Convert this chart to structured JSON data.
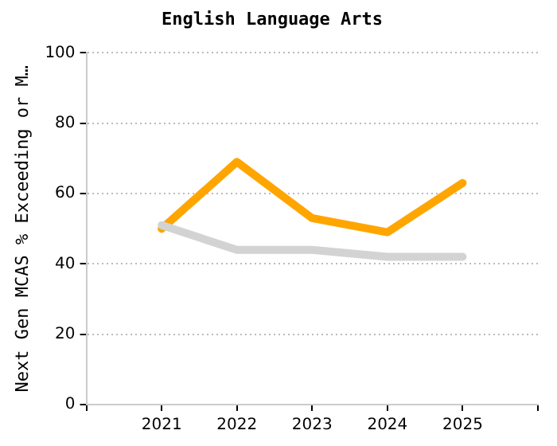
{
  "chart_data": {
    "type": "line",
    "title": "English Language Arts",
    "ylabel": "Next Gen MCAS % Exceeding or M…",
    "x": [
      2021,
      2022,
      2023,
      2024,
      2025
    ],
    "xlim": [
      2020,
      2026
    ],
    "xticks": [
      {
        "value": 2020,
        "label": null
      },
      2021,
      2022,
      2023,
      2024,
      2025,
      {
        "value": 2026,
        "label": null
      }
    ],
    "ylim": [
      0,
      100
    ],
    "yticks": [
      0,
      20,
      40,
      60,
      80,
      100
    ],
    "series": [
      {
        "color": "#d3d3d3",
        "values": [
          51,
          44,
          44,
          42,
          42
        ]
      },
      {
        "color": "#ffa500",
        "values": [
          50,
          69,
          53,
          49,
          63
        ]
      }
    ],
    "grid": "y",
    "legend": false,
    "marker": "none",
    "line_style": "solid"
  }
}
